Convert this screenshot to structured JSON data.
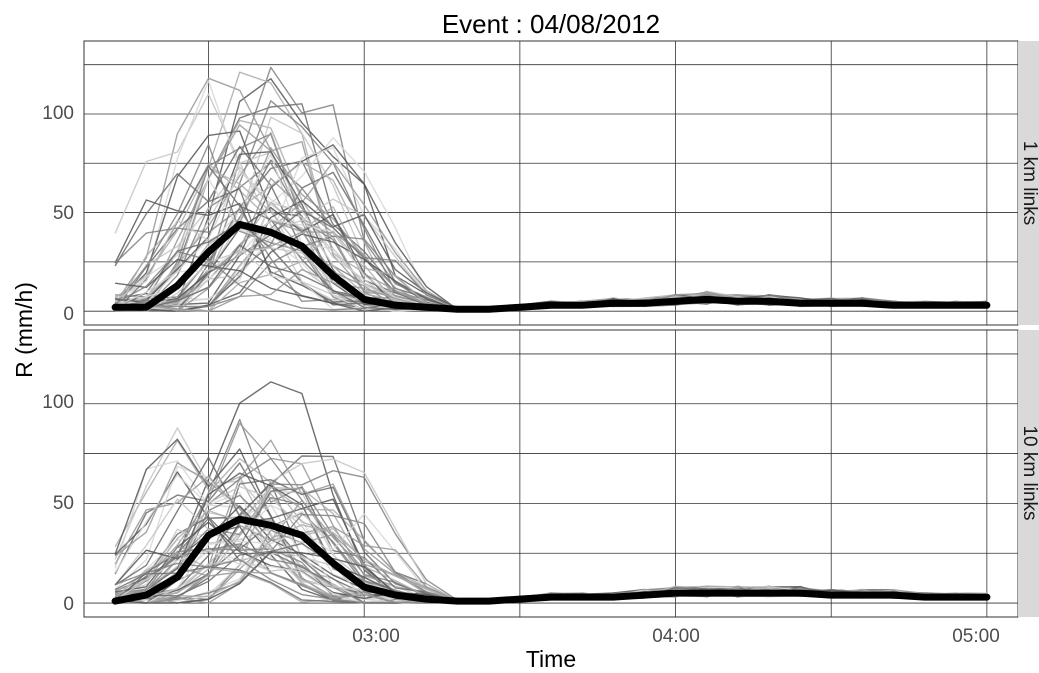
{
  "chart_data": {
    "type": "line",
    "title": "Event : 04/08/2012",
    "xlabel": "Time",
    "ylabel": "R (mm/h)",
    "xlim": [
      "02:06",
      "05:06"
    ],
    "ylim": [
      -7,
      137
    ],
    "x_ticks": [
      "03:00",
      "04:00",
      "05:00"
    ],
    "y_ticks": [
      0,
      50,
      100
    ],
    "grid": true,
    "legend": "none",
    "colors": {
      "mean_line": "#000000",
      "link_lines": [
        "#555555",
        "#6b6b6b",
        "#808080",
        "#969696",
        "#ababab",
        "#c4c4c4",
        "#d6d6d6"
      ],
      "strip_bg": "#d9d9d9"
    },
    "panels": [
      {
        "strip_label": "1 km links",
        "x": [
          "02:12",
          "02:18",
          "02:24",
          "02:30",
          "02:36",
          "02:42",
          "02:48",
          "02:54",
          "03:00",
          "03:06",
          "03:12",
          "03:18",
          "03:24",
          "03:30",
          "03:36",
          "03:42",
          "03:48",
          "03:54",
          "04:00",
          "04:06",
          "04:12",
          "04:18",
          "04:24",
          "04:30",
          "04:36",
          "04:42",
          "04:48",
          "04:54",
          "05:00"
        ],
        "mean": [
          2,
          2,
          13,
          30,
          44,
          40,
          33,
          18,
          6,
          3,
          2,
          1,
          1,
          2,
          3,
          3,
          4,
          4,
          5,
          6,
          5,
          5,
          4,
          4,
          4,
          3,
          3,
          3,
          3
        ],
        "individual_peaks": [
          128,
          115,
          110,
          105,
          100,
          97,
          95,
          92,
          90,
          88,
          86,
          86,
          85,
          84,
          83,
          82,
          80,
          78,
          77,
          76,
          75,
          74,
          73,
          72,
          70,
          69,
          68,
          67,
          66,
          65,
          64,
          63,
          62,
          61,
          60,
          59,
          58,
          57,
          55,
          54,
          53,
          52,
          50,
          49,
          48,
          46,
          45,
          44,
          42,
          40,
          38,
          36,
          35,
          34,
          32,
          30,
          28,
          26,
          24,
          22
        ]
      },
      {
        "strip_label": "10 km links",
        "x": [
          "02:12",
          "02:18",
          "02:24",
          "02:30",
          "02:36",
          "02:42",
          "02:48",
          "02:54",
          "03:00",
          "03:06",
          "03:12",
          "03:18",
          "03:24",
          "03:30",
          "03:36",
          "03:42",
          "03:48",
          "03:54",
          "04:00",
          "04:06",
          "04:12",
          "04:18",
          "04:24",
          "04:30",
          "04:36",
          "04:42",
          "04:48",
          "04:54",
          "05:00"
        ],
        "mean": [
          1,
          4,
          13,
          34,
          42,
          39,
          34,
          20,
          8,
          4,
          2,
          1,
          1,
          2,
          3,
          3,
          3,
          4,
          5,
          5,
          5,
          5,
          5,
          4,
          4,
          4,
          3,
          3,
          3
        ],
        "individual_peaks": [
          102,
          85,
          82,
          80,
          78,
          77,
          75,
          74,
          73,
          72,
          71,
          70,
          68,
          67,
          66,
          65,
          64,
          63,
          62,
          61,
          60,
          59,
          58,
          57,
          56,
          55,
          54,
          53,
          52,
          51,
          50,
          49,
          48,
          47,
          46,
          45,
          44,
          43,
          42,
          41,
          40,
          39,
          38,
          37,
          36,
          35,
          34,
          33,
          32,
          31,
          30,
          29,
          28,
          27,
          26,
          25,
          24,
          23,
          22,
          21
        ]
      }
    ]
  }
}
